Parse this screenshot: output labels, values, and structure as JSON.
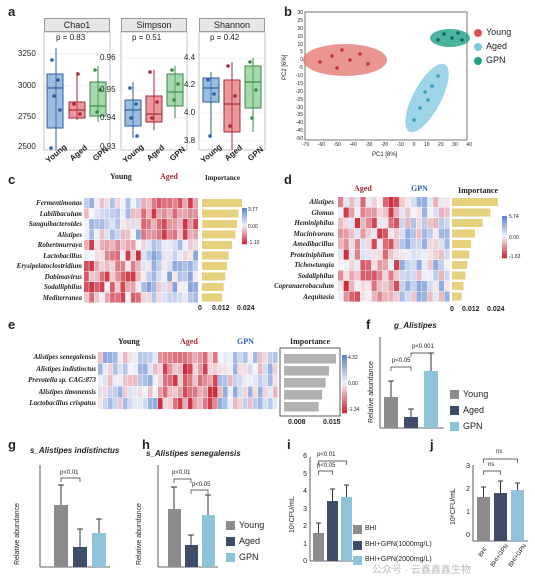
{
  "panels": {
    "a": "a",
    "b": "b",
    "c": "c",
    "d": "d",
    "e": "e",
    "f": "f",
    "g": "g",
    "h": "h",
    "i": "i",
    "j": "j"
  },
  "colors": {
    "young": "#4a86c5",
    "aged": "#d9434f",
    "gpn": "#5cb86a",
    "bar_young": "#8c8c8c",
    "bar_aged": "#3f4d6b",
    "bar_gpn": "#8fc3d9",
    "heat_high": "#2a60a8",
    "heat_low": "#c4263c",
    "importance_bar_c": "#e6d27e",
    "importance_bar_e": "#b0b0b0"
  },
  "groups": {
    "young": "Young",
    "aged": "Aged",
    "gpn": "GPN"
  },
  "panel_a": {
    "plots": [
      {
        "title": "Chao1",
        "pvalue": "p = 0.83",
        "yticks": [
          "3250",
          "3000",
          "2750",
          "2500"
        ]
      },
      {
        "title": "Simpson",
        "pvalue": "p = 0.51",
        "yticks": [
          "0.96",
          "0.95",
          "0.94",
          "0.93"
        ]
      },
      {
        "title": "Shannon",
        "pvalue": "p = 0.42",
        "yticks": [
          "4.4",
          "4.2",
          "4.0",
          "3.8"
        ]
      }
    ],
    "xlabels": [
      "Young",
      "Aged",
      "GPN"
    ]
  },
  "panel_b": {
    "xlabel": "PC1 [8%]",
    "ylabel": "PC2 [6%]",
    "xticks": [
      "-70",
      "-60",
      "-50",
      "-40",
      "-30",
      "-20",
      "-10",
      "0",
      "10",
      "20",
      "30",
      "40"
    ],
    "yticks": [
      "30",
      "25",
      "20",
      "15",
      "10",
      "5",
      "0",
      "-5",
      "-10",
      "-15",
      "-20",
      "-25",
      "-30",
      "-35",
      "-40",
      "-45",
      "-50"
    ],
    "legend": [
      "Young",
      "Aged",
      "GPN"
    ]
  },
  "panel_c": {
    "headers": [
      "Young",
      "Aged",
      "Importance"
    ],
    "rows": [
      "Fermentimonas",
      "Labilibaculum",
      "Sanguibacteroides",
      "Alistipes",
      "Robertmurraya",
      "Lactobacillus",
      "Erysipelatoclostridium",
      "Dabimavirus",
      "Sodalliphilus",
      "Mediterranea"
    ],
    "scale": [
      "3.77",
      "0.00",
      "-1.10"
    ],
    "xticks": [
      "0",
      "0.012",
      "0.024"
    ],
    "importance": [
      0.024,
      0.022,
      0.021,
      0.02,
      0.018,
      0.016,
      0.015,
      0.014,
      0.013,
      0.012
    ]
  },
  "panel_d": {
    "headers": [
      "Aged",
      "GPN",
      "Importance"
    ],
    "rows": [
      "Alistipes",
      "Glomus",
      "Heminiphilus",
      "Mucinivorans",
      "Amedibacillus",
      "Proteiniphilum",
      "Tichowtungia",
      "Sodaliphilus",
      "Copranaerobaculum",
      "Aequitasia"
    ],
    "scale": [
      "5.74",
      "0.00",
      "-1.63"
    ],
    "xticks": [
      "0",
      "0.012",
      "0.024"
    ],
    "importance": [
      0.024,
      0.02,
      0.016,
      0.012,
      0.01,
      0.009,
      0.008,
      0.007,
      0.006,
      0.005
    ]
  },
  "panel_e": {
    "headers": [
      "Young",
      "Aged",
      "GPN",
      "Importance"
    ],
    "rows": [
      "Alistipes senegalensis",
      "Alistipes indistinctus",
      "Prevotella sp. CAG:873",
      "Alistipes timonensis",
      "Lactobacillus crispatus"
    ],
    "scale": [
      "4.32",
      "0.00",
      "-1.34"
    ],
    "xticks": [
      "0.008",
      "0.015"
    ],
    "importance": [
      0.015,
      0.013,
      0.012,
      0.011,
      0.01
    ]
  },
  "panel_f": {
    "title": "g_Alistipes",
    "ylabel": "Relative abundance",
    "sig": [
      "p<0.05",
      "p<0.001"
    ],
    "legend": [
      "Young",
      "Aged",
      "GPN"
    ]
  },
  "panel_g": {
    "title": "s_Alistipes indistinctus",
    "ylabel": "Relative abundance",
    "sig": [
      "p<0.01"
    ]
  },
  "panel_h": {
    "title": "s_Alistipes senegalensis",
    "ylabel": "Relative abundance",
    "sig": [
      "p<0.01",
      "p<0.05"
    ],
    "legend": [
      "Young",
      "Aged",
      "GPN"
    ]
  },
  "panel_i": {
    "ylabel": "10⁶CFU/mL",
    "yticks": [
      "6",
      "5",
      "4",
      "3",
      "2",
      "1",
      "0"
    ],
    "sig": [
      "p<0.01",
      "p<0.05"
    ],
    "legend": [
      "BHI",
      "BHI+GPN(1000mg/L)",
      "BHI+GPN(2000mg/L)"
    ]
  },
  "panel_j": {
    "ylabel": "10⁸CFU/mL",
    "yticks": [
      "3",
      "2",
      "1",
      "0"
    ],
    "sig": [
      "ns",
      "ns"
    ],
    "xlabels": [
      "BHI",
      "BHI+GPN",
      "BHI+GPN"
    ]
  },
  "watermark": "公众号 · 云鑫鑫鑫生物"
}
